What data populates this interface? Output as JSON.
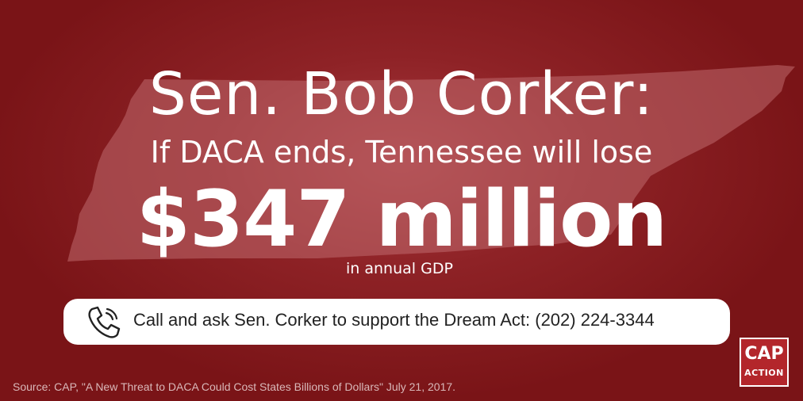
{
  "headline": {
    "title": "Sen. Bob Corker:",
    "subtitle": "If DACA ends, Tennessee will lose",
    "amount": "$347 million",
    "amount_note": "in annual GDP"
  },
  "call_to_action": {
    "icon": "phone-icon",
    "text": "Call and ask Sen. Corker to support the Dream Act: (202) 224-3344"
  },
  "source": "Source: CAP, \"A New Threat to DACA Could Cost States Billions of Dollars\" July 21, 2017.",
  "logo": {
    "line1": "CAP",
    "line2": "ACTION"
  },
  "colors": {
    "background": "#8e2226",
    "state_shape": "#b85a5e",
    "logo_background": "#b3262b"
  }
}
